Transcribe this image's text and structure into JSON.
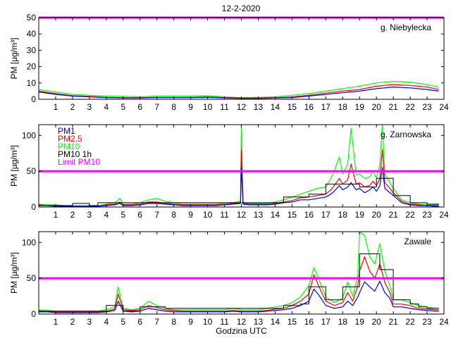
{
  "title": "12-2-2020",
  "colors": {
    "pm1": "#0000ff",
    "pm25": "#ff0000",
    "pm10": "#00ff00",
    "pm10_1h": "#000000",
    "limit": "#ff00ff"
  },
  "chart_data": [
    {
      "type": "line",
      "title": "12-2-2020",
      "station": "g. Niebylecka",
      "ylabel": "PM [µg/m³]",
      "xlabel": "",
      "xlim": [
        0,
        24
      ],
      "ylim": [
        0,
        50
      ],
      "yticks": [
        "0",
        "10",
        "20",
        "30",
        "40",
        "50"
      ],
      "xticks": [
        "1",
        "2",
        "3",
        "4",
        "5",
        "6",
        "7",
        "8",
        "9",
        "10",
        "11",
        "12",
        "13",
        "14",
        "15",
        "16",
        "17",
        "18",
        "19",
        "20",
        "21",
        "22",
        "23",
        "24"
      ],
      "limit_line": 50,
      "legend": [],
      "x": [
        0,
        1,
        2,
        3,
        4,
        5,
        6,
        7,
        8,
        9,
        10,
        11,
        12,
        13,
        14,
        15,
        16,
        17,
        18,
        19,
        20,
        21,
        22,
        23,
        23.7
      ],
      "series": [
        {
          "name": "PM1",
          "values": [
            4.5,
            3.0,
            2.0,
            1.5,
            1.0,
            0.8,
            0.8,
            1.0,
            1.0,
            1.0,
            1.2,
            0.8,
            0.5,
            0.5,
            0.8,
            1.0,
            2.0,
            3.0,
            4.0,
            5.0,
            6.5,
            7.5,
            7.0,
            6.0,
            5.0
          ]
        },
        {
          "name": "PM2.5",
          "values": [
            5.0,
            3.5,
            2.2,
            1.8,
            1.2,
            1.0,
            1.0,
            1.2,
            1.2,
            1.2,
            1.5,
            1.0,
            0.8,
            0.8,
            1.0,
            1.5,
            2.5,
            3.8,
            5.0,
            6.0,
            8.0,
            9.0,
            8.5,
            7.5,
            6.0
          ]
        },
        {
          "name": "PM10",
          "values": [
            6.0,
            4.5,
            3.0,
            2.5,
            2.0,
            1.8,
            1.5,
            2.0,
            2.0,
            2.0,
            2.2,
            1.5,
            1.0,
            1.2,
            1.5,
            2.5,
            3.5,
            5.0,
            6.5,
            8.0,
            10.0,
            11.0,
            10.5,
            9.0,
            7.5
          ]
        }
      ]
    },
    {
      "type": "line",
      "station": "g. Zarnowska",
      "ylabel": "PM [µg/m³]",
      "xlabel": "",
      "xlim": [
        0,
        24
      ],
      "ylim": [
        0,
        115
      ],
      "yticks": [
        "0",
        "50",
        "100"
      ],
      "xticks": [
        "1",
        "2",
        "3",
        "4",
        "5",
        "6",
        "7",
        "8",
        "9",
        "10",
        "11",
        "12",
        "13",
        "14",
        "15",
        "16",
        "17",
        "18",
        "19",
        "20",
        "21",
        "22",
        "23",
        "24"
      ],
      "limit_line": 50,
      "legend": [
        {
          "label": "PM1",
          "key": "pm1"
        },
        {
          "label": "PM2.5",
          "key": "pm25"
        },
        {
          "label": "PM10",
          "key": "pm10"
        },
        {
          "label": "PM10 1h",
          "key": "pm10_1h"
        },
        {
          "label": "Limit PM10",
          "key": "limit"
        }
      ],
      "x": [
        0,
        0.5,
        1,
        1.5,
        2,
        2.5,
        3,
        3.5,
        4,
        4.5,
        4.8,
        5,
        5.5,
        6,
        6.5,
        7,
        7.5,
        8,
        8.5,
        9,
        9.5,
        10,
        10.5,
        11,
        11.5,
        11.95,
        12,
        12.1,
        12.5,
        13,
        13.5,
        14,
        14.5,
        15,
        15.5,
        16,
        16.5,
        17,
        17.3,
        17.5,
        17.8,
        18,
        18.3,
        18.5,
        18.8,
        19,
        19.3,
        19.6,
        19.8,
        20,
        20.2,
        20.35,
        20.5,
        20.8,
        21,
        21.5,
        22,
        22.5,
        23,
        23.5,
        23.7
      ],
      "series": [
        {
          "name": "PM1",
          "values": [
            2,
            2,
            1,
            1,
            1,
            1,
            1,
            1,
            2,
            3,
            5,
            2,
            2,
            3,
            5,
            5,
            4,
            3,
            2,
            2,
            2,
            2,
            2,
            3,
            4,
            5,
            55,
            4,
            3,
            3,
            3,
            4,
            6,
            7,
            10,
            10,
            12,
            14,
            18,
            22,
            30,
            24,
            28,
            34,
            24,
            26,
            20,
            24,
            28,
            22,
            30,
            55,
            26,
            20,
            16,
            6,
            3,
            2,
            2,
            1,
            1
          ]
        },
        {
          "name": "PM2.5",
          "values": [
            3,
            2,
            2,
            1,
            1,
            1,
            1,
            1,
            3,
            4,
            7,
            3,
            3,
            4,
            7,
            7,
            5,
            4,
            3,
            3,
            3,
            3,
            3,
            4,
            5,
            6,
            80,
            5,
            4,
            4,
            4,
            5,
            7,
            9,
            13,
            14,
            16,
            18,
            24,
            30,
            40,
            32,
            38,
            60,
            32,
            34,
            28,
            30,
            36,
            30,
            40,
            80,
            34,
            26,
            20,
            8,
            4,
            3,
            2,
            2,
            2
          ]
        },
        {
          "name": "PM10",
          "values": [
            4,
            3,
            3,
            2,
            2,
            2,
            2,
            2,
            4,
            6,
            12,
            4,
            4,
            6,
            10,
            12,
            8,
            6,
            4,
            4,
            4,
            4,
            4,
            6,
            6,
            8,
            118,
            6,
            5,
            5,
            5,
            7,
            10,
            14,
            18,
            22,
            26,
            28,
            40,
            50,
            70,
            46,
            60,
            110,
            45,
            46,
            40,
            42,
            50,
            40,
            60,
            118,
            46,
            34,
            26,
            10,
            6,
            4,
            3,
            3,
            3
          ]
        },
        {
          "name": "PM10 1h",
          "step": true,
          "values": [
            2,
            2,
            2,
            2,
            5,
            5,
            2,
            6,
            6,
            6,
            6,
            6,
            6,
            6,
            6,
            6,
            6,
            6,
            6,
            6,
            6,
            6,
            6,
            6,
            6,
            6,
            6,
            6,
            6,
            6,
            6,
            6,
            14,
            14,
            14,
            18,
            18,
            32,
            32,
            32,
            32,
            32,
            32,
            32,
            32,
            28,
            28,
            28,
            28,
            40,
            40,
            40,
            40,
            40,
            16,
            16,
            6,
            6,
            4,
            4,
            4
          ]
        }
      ]
    },
    {
      "type": "line",
      "station": "Zawale",
      "ylabel": "PM [µg/m³]",
      "xlabel": "Godzina UTC",
      "xlim": [
        0,
        24
      ],
      "ylim": [
        0,
        115
      ],
      "yticks": [
        "0",
        "50",
        "100"
      ],
      "xticks": [
        "1",
        "2",
        "3",
        "4",
        "5",
        "6",
        "7",
        "8",
        "9",
        "10",
        "11",
        "12",
        "13",
        "14",
        "15",
        "16",
        "17",
        "18",
        "19",
        "20",
        "21",
        "22",
        "23",
        "24"
      ],
      "limit_line": 50,
      "legend": [],
      "x": [
        0,
        0.5,
        1,
        1.5,
        2,
        2.5,
        3,
        3.5,
        4,
        4.5,
        4.7,
        5,
        5.5,
        6,
        6.5,
        7,
        7.5,
        8,
        8.5,
        9,
        9.5,
        10,
        10.5,
        11,
        11.5,
        12,
        12.5,
        13,
        13.5,
        14,
        14.5,
        15,
        15.5,
        16,
        16.3,
        16.6,
        17,
        17.5,
        18,
        18.3,
        18.6,
        18.9,
        19,
        19.3,
        19.6,
        19.9,
        20.2,
        20.5,
        20.8,
        21,
        21.5,
        22,
        22.5,
        23,
        23.5,
        23.7
      ],
      "series": [
        {
          "name": "PM1",
          "values": [
            3,
            3,
            2,
            2,
            2,
            2,
            2,
            2,
            3,
            5,
            18,
            4,
            3,
            4,
            8,
            6,
            4,
            3,
            3,
            3,
            3,
            3,
            3,
            3,
            4,
            3,
            3,
            3,
            4,
            5,
            6,
            8,
            12,
            18,
            35,
            26,
            12,
            8,
            10,
            18,
            12,
            24,
            30,
            45,
            38,
            32,
            46,
            30,
            22,
            10,
            10,
            8,
            6,
            5,
            4,
            4
          ]
        },
        {
          "name": "PM2.5",
          "values": [
            4,
            4,
            3,
            3,
            3,
            3,
            3,
            3,
            4,
            7,
            28,
            6,
            5,
            6,
            12,
            9,
            6,
            5,
            4,
            4,
            4,
            4,
            4,
            4,
            5,
            4,
            4,
            4,
            5,
            7,
            8,
            12,
            18,
            28,
            55,
            38,
            18,
            12,
            16,
            30,
            18,
            40,
            60,
            80,
            60,
            50,
            70,
            44,
            30,
            14,
            14,
            12,
            8,
            7,
            6,
            6
          ]
        },
        {
          "name": "PM10",
          "values": [
            6,
            5,
            4,
            4,
            4,
            4,
            4,
            4,
            6,
            10,
            38,
            8,
            6,
            8,
            18,
            12,
            8,
            6,
            6,
            6,
            6,
            6,
            6,
            6,
            8,
            6,
            6,
            6,
            8,
            10,
            12,
            16,
            24,
            40,
            65,
            48,
            24,
            16,
            22,
            45,
            25,
            55,
            115,
            110,
            80,
            70,
            98,
            60,
            40,
            20,
            20,
            16,
            12,
            10,
            8,
            8
          ]
        },
        {
          "name": "PM10 1h",
          "step": true,
          "values": [
            4,
            4,
            4,
            4,
            4,
            4,
            4,
            4,
            12,
            12,
            12,
            4,
            4,
            10,
            10,
            10,
            8,
            8,
            8,
            8,
            8,
            8,
            8,
            8,
            8,
            8,
            8,
            8,
            8,
            8,
            12,
            12,
            14,
            38,
            38,
            38,
            20,
            20,
            38,
            38,
            38,
            38,
            84,
            84,
            84,
            84,
            62,
            62,
            62,
            20,
            20,
            14,
            10,
            8,
            8,
            8
          ]
        }
      ]
    }
  ]
}
